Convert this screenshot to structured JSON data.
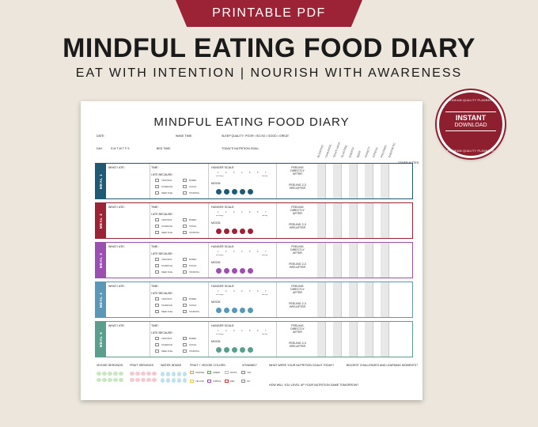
{
  "banner": "PRINTABLE PDF",
  "headline": "MINDFUL EATING FOOD DIARY",
  "subline": "EAT WITH INTENTION | NOURISH WITH AWARENESS",
  "badge": {
    "ring_top": "PREMIUM QUALITY PLANNERS",
    "ring_bottom": "PREMIUM QUALITY PLANNERS",
    "line1": "INSTANT",
    "line2": "DOWNLOAD"
  },
  "doc": {
    "title": "MINDFUL EATING FOOD DIARY",
    "date": "DATE:",
    "wake": "WAKE TIME:",
    "sleep_quality": "SLEEP QUALITY:",
    "sleep_scale": "POOR  •  SO-SO  •  GOOD  •  GREAT",
    "day": "DAY:",
    "days": "S M T W T F S",
    "bed": "BED TIME:",
    "goal": "TODAY'S NUTRITION GOAL:",
    "other_notes": "OTHER NOTES:",
    "columns": [
      "BLOATING",
      "CRAVINGS",
      "TIGHT/ HIGH",
      "GLUCOSE",
      "ENERGY",
      "BEER",
      "ANXIETY",
      "STRESS",
      "FOCUSED",
      "ENERGETIC"
    ],
    "meal_labels": {
      "what": "WHAT I ATE:",
      "time": "TIME:",
      "because": "I ATE BECAUSE:",
      "options": [
        "CRAVINGS",
        "SCHEDULE",
        "NEED FUEL",
        "BORED",
        "SOCIAL",
        "STARVING"
      ],
      "hunger": "HUNGER SCALE:",
      "scale": [
        "1",
        "2",
        "3",
        "4",
        "5",
        "6",
        "7"
      ],
      "not_hungry": "not hungry",
      "starving": "starving",
      "mood": "MOOD:",
      "feeling1": "FEELING DIRECTLY AFTER",
      "feeling2": "FEELING 2-3 HRS AFTER"
    },
    "meals": [
      {
        "name": "MEAL 1",
        "color": "#1f5a74"
      },
      {
        "name": "MEAL 2",
        "color": "#9b2335"
      },
      {
        "name": "MEAL 3",
        "color": "#9b4fb0"
      },
      {
        "name": "MEAL 4",
        "color": "#5a98b8"
      },
      {
        "name": "MEAL 5",
        "color": "#5a9e8e"
      }
    ],
    "footer": {
      "veggie": "VEGGIE SERVINGS",
      "fruit": "FRUIT SERVINGS",
      "water": "WATER INTAKE",
      "colors": "FRUIT + VEGGIE COLORS:",
      "color_names": [
        "ORANGE",
        "GREEN",
        "WHITE",
        "YELLOW",
        "PURPLE",
        "RED"
      ],
      "vitamins": "VITAMINS?",
      "yes": "YES",
      "no": "NO",
      "q1": "WHAT WERE YOUR NUTRITION GOALS TODAY?",
      "q2": "BIGGEST CHALLENGES AND LEARNING MOMENTS?",
      "q3": "HOW WILL YOU LEVEL UP YOUR NUTRITION GAME TOMORROW?"
    }
  }
}
